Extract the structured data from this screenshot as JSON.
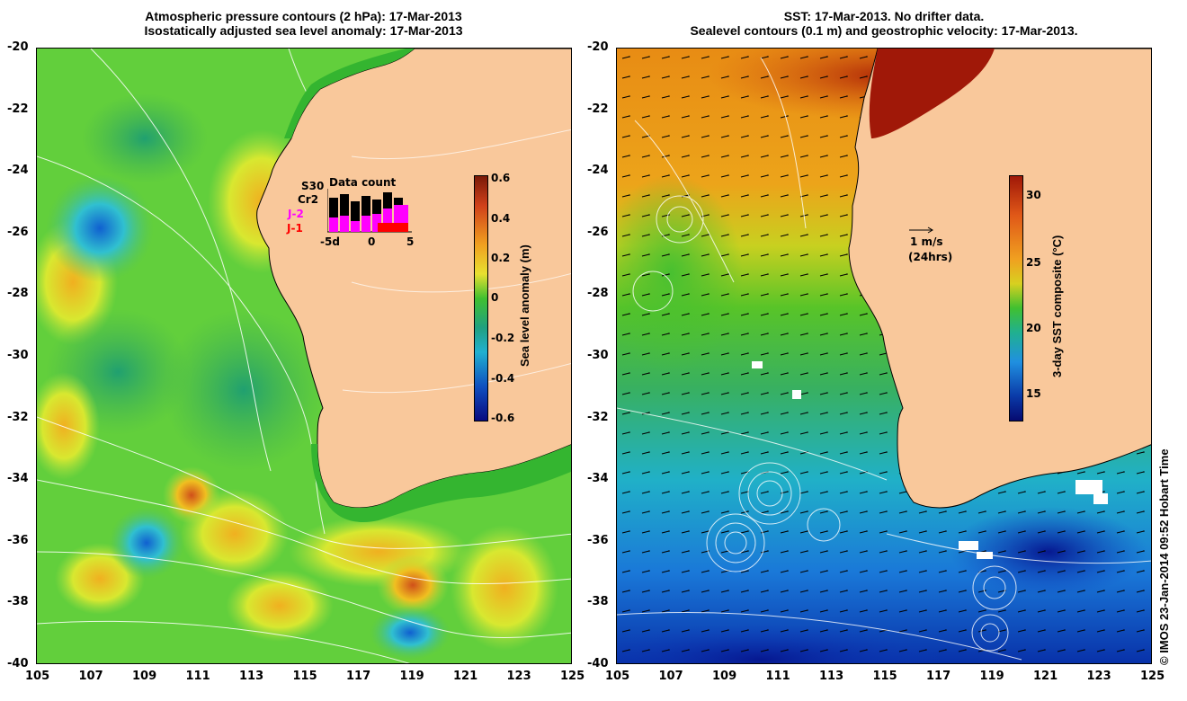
{
  "left_panel": {
    "title_line1": "Atmospheric pressure contours (2 hPa): 17-Mar-2013",
    "title_line2": "Isostatically adjusted sea level anomaly: 17-Mar-2013",
    "colorbar_label": "Sea level anomaly (m)",
    "colorbar_ticks": [
      "0.6",
      "0.4",
      "0.2",
      "0",
      "-0.2",
      "-0.4",
      "-0.6"
    ],
    "legend": {
      "title": "Data count",
      "missions": [
        "S30",
        "Cr2",
        "J-2",
        "J-1"
      ],
      "mission_colors": [
        "#000000",
        "#000000",
        "#ff00ff",
        "#ff0000"
      ],
      "axis_ticks": [
        "-5d",
        "0",
        "5"
      ]
    }
  },
  "right_panel": {
    "title_line1": "SST: 17-Mar-2013. No drifter data.",
    "title_line2": "Sealevel contours (0.1 m) and geostrophic velocity: 17-Mar-2013.",
    "colorbar_label": "3-day SST composite (°C)",
    "colorbar_ticks": [
      "30",
      "25",
      "20",
      "15"
    ],
    "velocity_scale": "1 m/s",
    "velocity_scale_note": "(24hrs)"
  },
  "axes": {
    "x_ticks": [
      "105",
      "107",
      "109",
      "111",
      "113",
      "115",
      "117",
      "119",
      "121",
      "123",
      "125"
    ],
    "y_ticks": [
      "-20",
      "-22",
      "-24",
      "-26",
      "-28",
      "-30",
      "-32",
      "-34",
      "-36",
      "-38",
      "-40"
    ]
  },
  "credit": "© IMOS 23-Jan-2014 09:52 Hobart Time",
  "colors": {
    "land": "#f9c89b",
    "sla_background": "#6fd83a",
    "sst_cold": "#1a6fd6",
    "sst_warm": "#e89a1c"
  }
}
